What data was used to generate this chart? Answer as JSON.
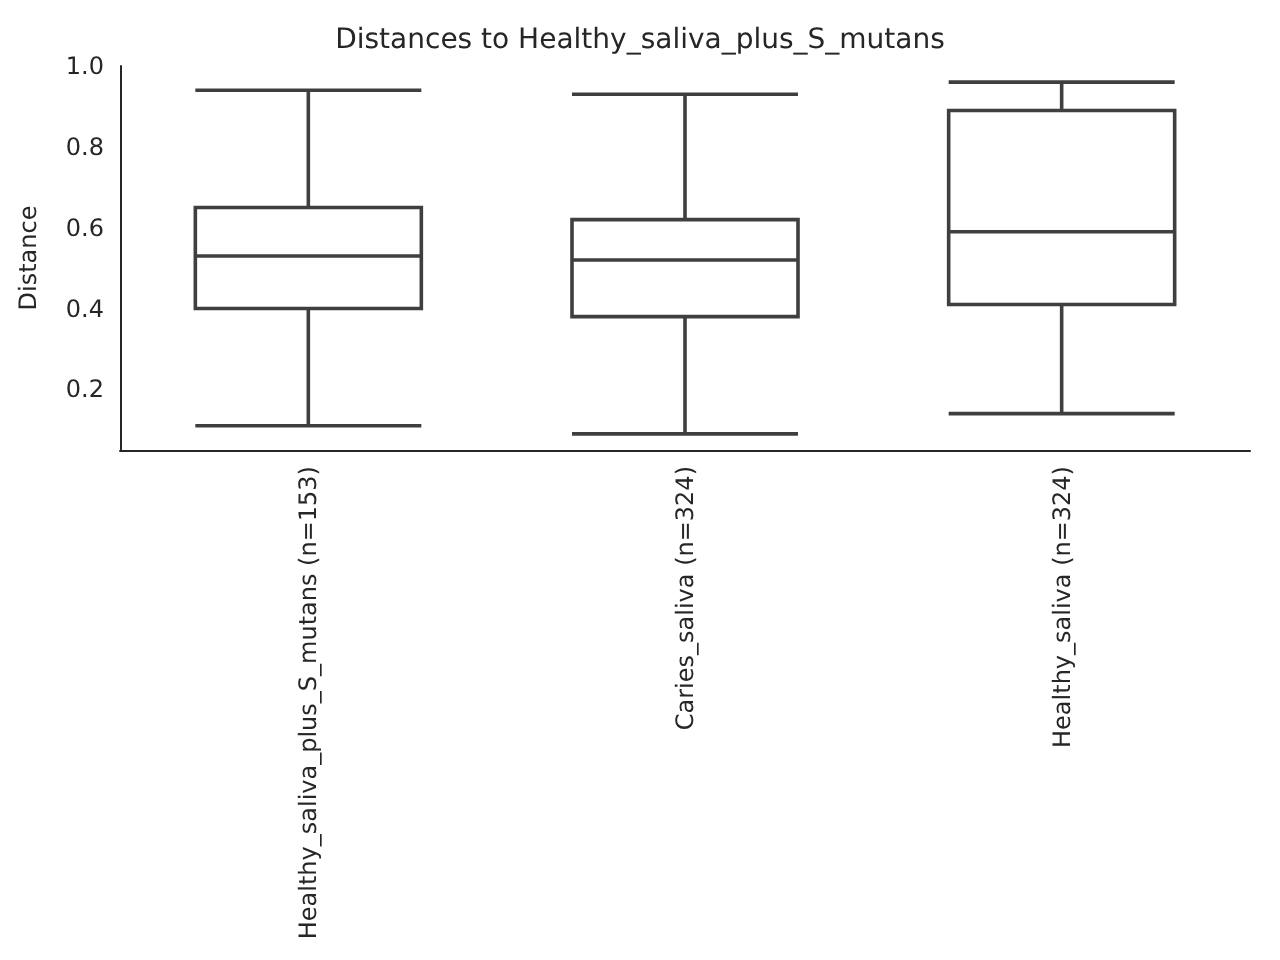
{
  "chart_data": {
    "type": "box",
    "title": "Distances to Healthy_saliva_plus_S_mutans",
    "ylabel": "Distance",
    "categories": [
      "Healthy_saliva_plus_S_mutans (n=153)",
      "Caries_saliva (n=324)",
      "Healthy_saliva (n=324)"
    ],
    "boxes": [
      {
        "low": 0.11,
        "q1": 0.4,
        "median": 0.53,
        "q3": 0.65,
        "high": 0.94
      },
      {
        "low": 0.09,
        "q1": 0.38,
        "median": 0.52,
        "q3": 0.62,
        "high": 0.93
      },
      {
        "low": 0.14,
        "q1": 0.41,
        "median": 0.59,
        "q3": 0.89,
        "high": 0.96
      }
    ],
    "color": "#3f3f3f",
    "ylim": [
      0.05,
      1.0
    ],
    "yticks": [
      {
        "value": 0.2,
        "label": "0.2"
      },
      {
        "value": 0.4,
        "label": "0.4"
      },
      {
        "value": 0.6,
        "label": "0.6"
      },
      {
        "value": 0.8,
        "label": "0.8"
      },
      {
        "value": 1,
        "label": "1.0"
      }
    ],
    "grid": false
  }
}
